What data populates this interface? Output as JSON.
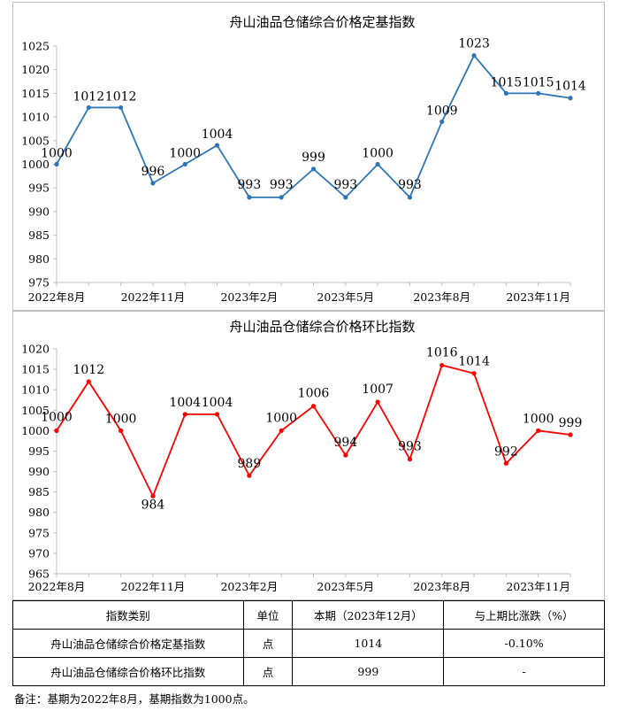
{
  "chart_data": [
    {
      "type": "line",
      "title": "舟山油品仓储综合价格定基指数",
      "x_tick_labels": [
        "2022年8月",
        "2022年11月",
        "2023年2月",
        "2023年5月",
        "2023年8月",
        "2023年11月"
      ],
      "x": [
        "2022-08",
        "2022-09",
        "2022-10",
        "2022-11",
        "2022-12",
        "2023-01",
        "2023-02",
        "2023-03",
        "2023-04",
        "2023-05",
        "2023-06",
        "2023-07",
        "2023-08",
        "2023-09",
        "2023-10",
        "2023-11",
        "2023-12"
      ],
      "values": [
        1000,
        1012,
        1012,
        996,
        1000,
        1004,
        993,
        993,
        999,
        993,
        1000,
        993,
        1009,
        1023,
        1015,
        1015,
        1014
      ],
      "ylim": [
        975,
        1025
      ],
      "y_ticks": [
        975,
        980,
        985,
        990,
        995,
        1000,
        1005,
        1010,
        1015,
        1020,
        1025
      ],
      "color": "#2e75b6",
      "grid": false
    },
    {
      "type": "line",
      "title": "舟山油品仓储综合价格环比指数",
      "x_tick_labels": [
        "2022年8月",
        "2022年11月",
        "2023年2月",
        "2023年5月",
        "2023年8月",
        "2023年11月"
      ],
      "x": [
        "2022-08",
        "2022-09",
        "2022-10",
        "2022-11",
        "2022-12",
        "2023-01",
        "2023-02",
        "2023-03",
        "2023-04",
        "2023-05",
        "2023-06",
        "2023-07",
        "2023-08",
        "2023-09",
        "2023-10",
        "2023-11",
        "2023-12"
      ],
      "values": [
        1000,
        1012,
        1000,
        984,
        1004,
        1004,
        989,
        1000,
        1006,
        994,
        1007,
        993,
        1016,
        1014,
        992,
        1000,
        999
      ],
      "ylim": [
        965,
        1020
      ],
      "y_ticks": [
        965,
        970,
        975,
        980,
        985,
        990,
        995,
        1000,
        1005,
        1010,
        1015,
        1020
      ],
      "color": "#ff0000",
      "grid": false
    }
  ],
  "table": {
    "headers": [
      "指数类别",
      "单位",
      "本期（2023年12月）",
      "与上期比涨跌（%）"
    ],
    "rows": [
      [
        "舟山油品仓储综合价格定基指数",
        "点",
        "1014",
        "-0.10%"
      ],
      [
        "舟山油品仓储综合价格环比指数",
        "点",
        "999",
        "-"
      ]
    ]
  },
  "note": "备注：基期为2022年8月，基期指数为1000点。"
}
